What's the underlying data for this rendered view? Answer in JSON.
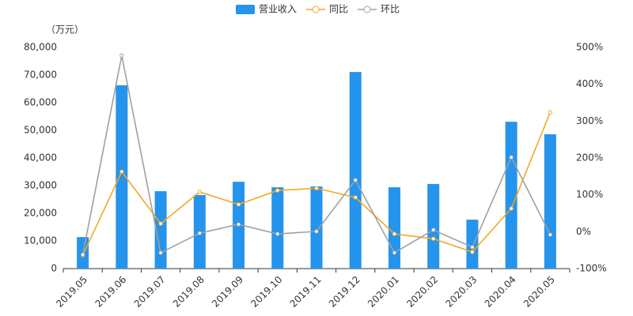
{
  "chart_data": {
    "type": "bar-line",
    "unit_label": "（万元）",
    "categories": [
      "2019.05",
      "2019.06",
      "2019.07",
      "2019.08",
      "2019.09",
      "2019.10",
      "2019.11",
      "2019.12",
      "2020.01",
      "2020.02",
      "2020.03",
      "2020.04",
      "2020.05"
    ],
    "series": [
      {
        "name": "营业收入",
        "type": "bar",
        "color": "#2594ec",
        "values": [
          11400,
          66300,
          28000,
          26600,
          31400,
          29400,
          29700,
          71100,
          29400,
          30600,
          17700,
          53100,
          48600
        ]
      },
      {
        "name": "同比",
        "type": "line",
        "axis": "y2",
        "color": "#f5a623",
        "values": [
          -64,
          163,
          22,
          108,
          74,
          112,
          118,
          93,
          -6,
          -19,
          -55,
          63,
          324
        ]
      },
      {
        "name": "环比",
        "type": "line",
        "axis": "y2",
        "color": "#a0a0a0",
        "values": [
          -62,
          478,
          -57,
          -4,
          20,
          -6,
          1,
          140,
          -57,
          5,
          -42,
          202,
          -8
        ]
      }
    ],
    "ylim": [
      0,
      80000
    ],
    "yticks": [
      0,
      {
        "value": 10000,
        "label": "10,000"
      },
      {
        "value": 20000,
        "label": "20,000"
      },
      {
        "value": 30000,
        "label": "30,000"
      },
      {
        "value": 40000,
        "label": "40,000"
      },
      {
        "value": 50000,
        "label": "50,000"
      },
      {
        "value": 60000,
        "label": "60,000"
      },
      {
        "value": 70000,
        "label": "70,000"
      },
      {
        "value": 80000,
        "label": "80,000"
      }
    ],
    "y2lim": [
      -100,
      500
    ],
    "y2ticks": [
      {
        "value": -100,
        "label": "-100%"
      },
      {
        "value": 0,
        "label": "0%"
      },
      {
        "value": 100,
        "label": "100%"
      },
      {
        "value": 200,
        "label": "200%"
      },
      {
        "value": 300,
        "label": "300%"
      },
      {
        "value": 400,
        "label": "400%"
      },
      {
        "value": 500,
        "label": "500%"
      }
    ]
  }
}
